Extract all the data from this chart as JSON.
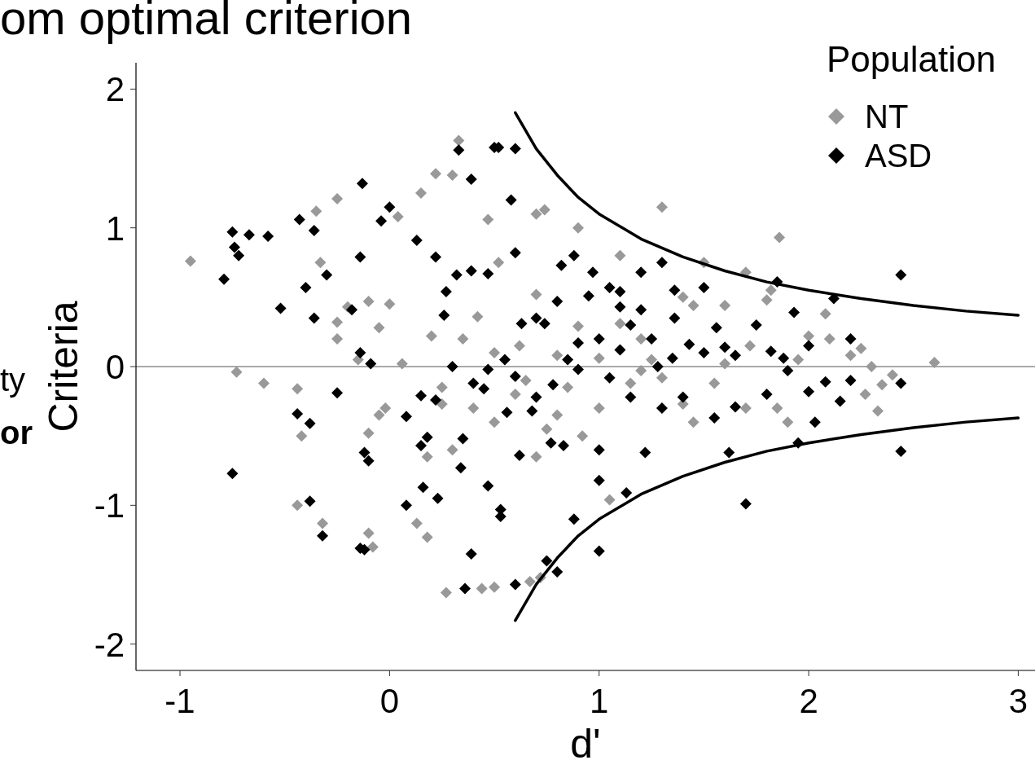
{
  "chart_data": {
    "type": "scatter",
    "title": "om optimal criterion",
    "xlabel": "d'",
    "ylabel": "Criteria",
    "legend_title": "Population",
    "legend": "top right",
    "marker": "diamond",
    "grid": false,
    "annotations": [
      "ty",
      "or"
    ],
    "xlim": [
      -1.21,
      3.08
    ],
    "xticks": [
      -1,
      0,
      1,
      2,
      3
    ],
    "ylim": [
      -2.19,
      2.19
    ],
    "yticks": [
      -2,
      -1,
      0,
      1,
      2
    ],
    "ref_lines": [
      {
        "axis": "y",
        "value": 0,
        "color": "#555555"
      }
    ],
    "series": [
      {
        "name": "NT",
        "color": "#999999",
        "x": [
          -0.95,
          -0.73,
          -0.6,
          -0.44,
          -0.42,
          -0.44,
          -0.32,
          -0.35,
          -0.25,
          -0.33,
          -0.25,
          -0.25,
          -0.2,
          -0.1,
          -0.15,
          -0.1,
          -0.05,
          -0.02,
          -0.1,
          -0.08,
          0.04,
          0.13,
          0.18,
          0.25,
          0.2,
          0.33,
          0.22,
          0.3,
          0.15,
          0.47,
          0.52,
          0.35,
          0.27,
          0.44,
          0.5,
          0.67,
          0.72,
          0.7,
          0.74,
          0.9,
          1.3,
          1.1,
          1.5,
          1.86,
          1.7,
          0.7,
          0.9,
          1.1,
          1.2,
          1.4,
          1.45,
          1.6,
          1.8,
          1.82,
          2.0,
          2.08,
          2.1,
          2.2,
          2.3,
          2.25,
          2.6,
          2.4,
          2.35,
          2.33,
          2.27,
          1.85,
          1.9,
          1.7,
          1.55,
          1.45,
          1.3,
          1.2,
          1.0,
          0.85,
          0.8,
          0.7,
          0.75,
          0.92,
          1.05,
          1.4,
          1.0,
          0.6,
          0.5,
          0.4,
          0.25,
          0.3,
          0.18,
          0.5,
          0.62,
          0.8,
          0.65,
          1.15,
          1.6,
          1.95,
          1.72,
          1.25,
          0.42,
          0.06,
          0.0,
          -0.05
        ],
        "values": [
          0.76,
          -0.04,
          -0.12,
          -0.16,
          -0.5,
          -1.0,
          -1.13,
          1.12,
          1.21,
          0.75,
          0.2,
          0.32,
          0.43,
          0.47,
          0.05,
          -0.48,
          -0.35,
          -0.3,
          -1.2,
          -1.3,
          1.08,
          -1.13,
          -1.23,
          -0.27,
          0.22,
          1.63,
          1.39,
          1.38,
          1.25,
          1.06,
          0.75,
          0.2,
          -1.63,
          -1.6,
          -1.59,
          -1.55,
          -1.52,
          1.1,
          1.13,
          1.0,
          1.15,
          0.8,
          0.75,
          0.93,
          0.68,
          0.52,
          0.29,
          0.31,
          0.2,
          0.5,
          0.44,
          0.44,
          0.48,
          0.55,
          0.22,
          0.38,
          0.2,
          0.08,
          0.0,
          0.13,
          0.03,
          -0.06,
          -0.13,
          -0.32,
          -0.2,
          -0.3,
          -0.4,
          -0.3,
          -0.12,
          -0.4,
          -0.08,
          -0.03,
          0.06,
          -0.15,
          -0.35,
          -0.65,
          -0.45,
          -0.5,
          -0.96,
          -0.27,
          -0.3,
          -0.2,
          -0.4,
          -0.3,
          -0.15,
          -0.6,
          -0.65,
          0.1,
          0.15,
          0.08,
          -0.1,
          -0.12,
          0.02,
          0.05,
          0.15,
          0.05,
          0.36,
          0.02,
          0.45,
          0.28
        ]
      },
      {
        "name": "ASD",
        "color": "#000000",
        "x": [
          -0.79,
          -0.75,
          -0.74,
          -0.72,
          -0.67,
          -0.58,
          -0.52,
          -0.75,
          -0.43,
          -0.36,
          -0.36,
          -0.4,
          -0.3,
          -0.18,
          -0.14,
          -0.13,
          -0.04,
          0.0,
          0.13,
          0.22,
          0.27,
          0.26,
          0.33,
          0.39,
          0.5,
          0.52,
          0.6,
          0.58,
          0.6,
          0.39,
          0.47,
          0.32,
          -0.14,
          -0.09,
          -0.44,
          -0.38,
          -0.25,
          -0.12,
          -0.1,
          -0.14,
          -0.12,
          -0.38,
          -0.32,
          0.08,
          0.15,
          0.15,
          0.18,
          0.22,
          0.08,
          0.16,
          0.23,
          0.34,
          0.39,
          0.36,
          0.47,
          0.53,
          0.53,
          0.6,
          0.62,
          0.75,
          0.8,
          0.83,
          0.88,
          1.0,
          1.0,
          1.13,
          1.7,
          2.44,
          2.44,
          2.44,
          1.85,
          1.93,
          2.12,
          0.82,
          0.88,
          0.97,
          1.05,
          1.2,
          1.3,
          1.5,
          1.36,
          1.1,
          0.8,
          0.95,
          0.74,
          0.63,
          0.7,
          1.2,
          1.1,
          1.36,
          1.56,
          1.43,
          1.65,
          1.82,
          1.9,
          2.0,
          2.08,
          2.2,
          0.47,
          0.6,
          0.7,
          0.78,
          0.9,
          1.05,
          1.15,
          1.3,
          1.4,
          1.55,
          1.65,
          1.8,
          1.62,
          1.22,
          1.0,
          0.77,
          0.68,
          0.35,
          0.45,
          0.56,
          0.9,
          1.0,
          1.1,
          1.25,
          1.35,
          1.5,
          1.75,
          2.0,
          2.2,
          1.95,
          2.03,
          1.15,
          0.85,
          0.55,
          0.3,
          0.4,
          1.28,
          1.6,
          1.88,
          2.15
        ],
        "values": [
          0.63,
          0.97,
          0.86,
          0.8,
          0.95,
          0.94,
          0.42,
          -0.77,
          1.06,
          0.98,
          0.35,
          0.57,
          0.66,
          0.41,
          0.79,
          1.32,
          1.05,
          1.15,
          0.91,
          0.79,
          0.54,
          0.37,
          1.56,
          1.35,
          1.58,
          1.58,
          1.57,
          1.2,
          0.82,
          0.69,
          0.67,
          0.66,
          0.1,
          0.02,
          -0.34,
          -0.41,
          -0.19,
          -0.62,
          -0.68,
          -1.31,
          -1.32,
          -0.97,
          -1.22,
          -0.36,
          -0.21,
          -0.57,
          -0.51,
          -0.24,
          -1.0,
          -0.87,
          -0.95,
          -0.73,
          -1.35,
          -1.6,
          -0.86,
          -1.03,
          -1.08,
          -1.57,
          -0.64,
          -1.4,
          -1.48,
          -0.57,
          -1.1,
          -0.82,
          -1.33,
          -0.91,
          -0.99,
          0.66,
          -0.12,
          -0.61,
          0.61,
          0.39,
          0.49,
          0.73,
          0.8,
          0.68,
          0.57,
          0.68,
          0.75,
          0.57,
          0.55,
          0.54,
          0.47,
          0.51,
          0.31,
          0.31,
          0.35,
          0.41,
          0.43,
          0.35,
          0.28,
          0.16,
          0.08,
          0.11,
          -0.03,
          -0.18,
          -0.11,
          -0.1,
          -0.02,
          -0.07,
          -0.22,
          -0.13,
          -0.02,
          -0.08,
          -0.22,
          -0.3,
          -0.22,
          -0.37,
          -0.29,
          -0.2,
          -0.62,
          -0.62,
          -0.6,
          -0.55,
          -0.32,
          -0.52,
          -0.16,
          -0.33,
          0.17,
          0.2,
          0.12,
          0.2,
          0.06,
          0.1,
          0.3,
          0.15,
          0.2,
          -0.55,
          -0.4,
          0.3,
          0.05,
          0.05,
          0.0,
          -0.12,
          0.0,
          0.14,
          0.06,
          -0.25
        ]
      },
      {
        "type": "line",
        "marker": "none",
        "color": "#000000",
        "x": [
          0.6,
          0.7,
          0.8,
          0.9,
          1.0,
          1.2,
          1.4,
          1.6,
          1.8,
          2.0,
          2.25,
          2.5,
          2.75,
          3.0
        ],
        "values": [
          1.83,
          1.57,
          1.38,
          1.22,
          1.1,
          0.92,
          0.79,
          0.69,
          0.61,
          0.55,
          0.49,
          0.44,
          0.4,
          0.37
        ]
      },
      {
        "type": "line",
        "marker": "none",
        "color": "#000000",
        "x": [
          0.6,
          0.7,
          0.8,
          0.9,
          1.0,
          1.2,
          1.4,
          1.6,
          1.8,
          2.0,
          2.25,
          2.5,
          2.75,
          3.0
        ],
        "values": [
          -1.83,
          -1.57,
          -1.38,
          -1.22,
          -1.1,
          -0.92,
          -0.79,
          -0.69,
          -0.61,
          -0.55,
          -0.49,
          -0.44,
          -0.4,
          -0.37
        ]
      }
    ]
  }
}
